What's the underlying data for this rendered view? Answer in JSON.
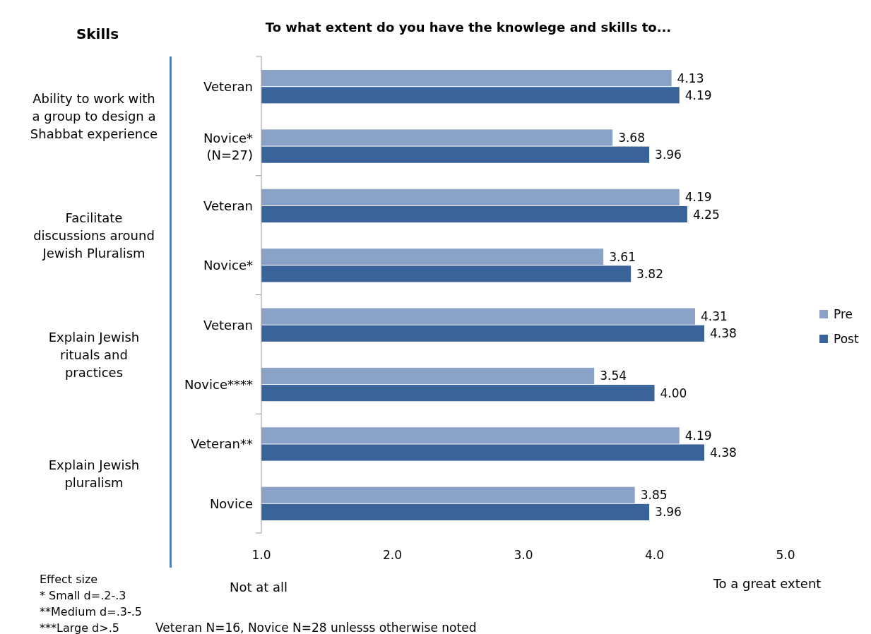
{
  "chart_data": {
    "type": "bar",
    "orientation": "horizontal",
    "title": "To what extent do you have the knowlege and skills to...",
    "categories": [
      "Veteran",
      "Novice* (N=27)",
      "Veteran",
      "Novice*",
      "Veteran",
      "Novice****",
      "Veteran**",
      "Novice"
    ],
    "series": [
      {
        "name": "Pre",
        "color": "#8aa2c8",
        "values": [
          4.13,
          3.68,
          4.19,
          3.61,
          4.31,
          3.54,
          4.19,
          3.85
        ],
        "value_labels": [
          "4.13",
          "3.68",
          "4.19",
          "3.61",
          "4.31",
          "3.54",
          "4.19",
          "3.85"
        ]
      },
      {
        "name": "Post",
        "color": "#3a6499",
        "values": [
          4.19,
          3.96,
          4.25,
          3.82,
          4.38,
          4.0,
          4.38,
          3.96
        ],
        "value_labels": [
          "4.19",
          "3.96",
          "4.25",
          "3.82",
          "4.38",
          "4.00",
          "4.38",
          "3.96"
        ]
      }
    ],
    "xlim": [
      1,
      5
    ],
    "xticks": [
      {
        "value": 1,
        "label": "1.0"
      },
      {
        "value": 2,
        "label": "2.0"
      },
      {
        "value": 3,
        "label": "3.0"
      },
      {
        "value": 4,
        "label": "4.0"
      },
      {
        "value": 5,
        "label": "5.0"
      }
    ],
    "annotations": [
      "Skills",
      "Ability to work with a group to design a Shabbat experience",
      "Facilitate discussions around Jewish Pluralism",
      "Explain Jewish rituals and practices",
      "Explain Jewish pluralism",
      "Not at all",
      "To a great extent",
      "Effect size",
      "* Small d=.2-.3",
      "**Medium d=.3-.5",
      "***Large d>.5",
      "Veteran N=16, Novice N=28 unlesss otherwise noted"
    ],
    "grid": false,
    "legend": "right"
  }
}
